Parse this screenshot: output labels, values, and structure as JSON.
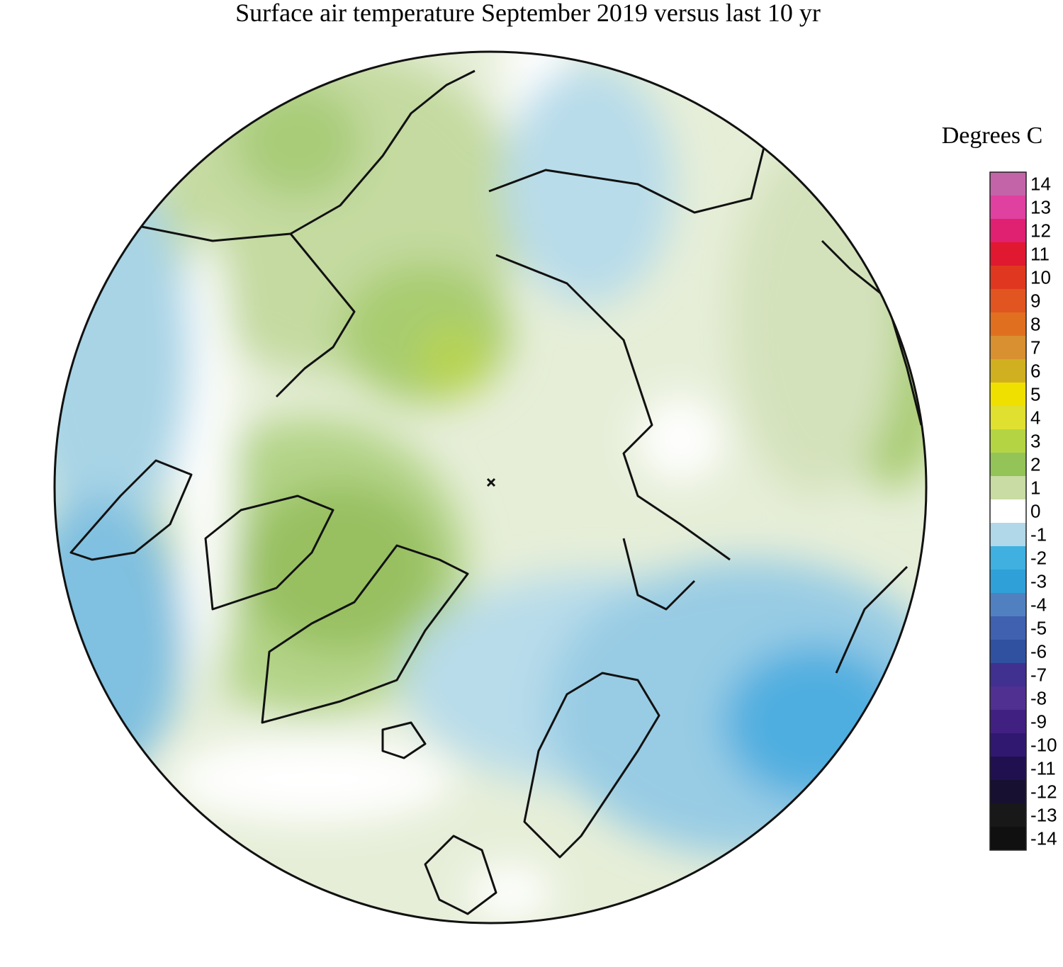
{
  "title": "Surface air temperature September 2019 versus last 10 yr",
  "colorbar": {
    "label": "Degrees C",
    "lim": [
      -14.5,
      14.5
    ],
    "ticks": [
      14,
      13,
      12,
      11,
      10,
      9,
      8,
      7,
      6,
      5,
      4,
      3,
      2,
      1,
      0,
      -1,
      -2,
      -3,
      -4,
      -5,
      -6,
      -7,
      -8,
      -9,
      -10,
      -11,
      -12,
      -13,
      -14
    ],
    "colors": [
      "#c464a8",
      "#e040a0",
      "#e02070",
      "#e01830",
      "#e03820",
      "#e05520",
      "#e07020",
      "#d89030",
      "#d0b020",
      "#f0e000",
      "#e0e030",
      "#b4d444",
      "#94c458",
      "#c8dca4",
      "#ffffff",
      "#b0d8e8",
      "#40b0e0",
      "#30a0d8",
      "#5080c0",
      "#4060b0",
      "#3050a0",
      "#403090",
      "#503090",
      "#402080",
      "#301870",
      "#201050",
      "#181030",
      "#181818",
      "#101010"
    ]
  }
}
